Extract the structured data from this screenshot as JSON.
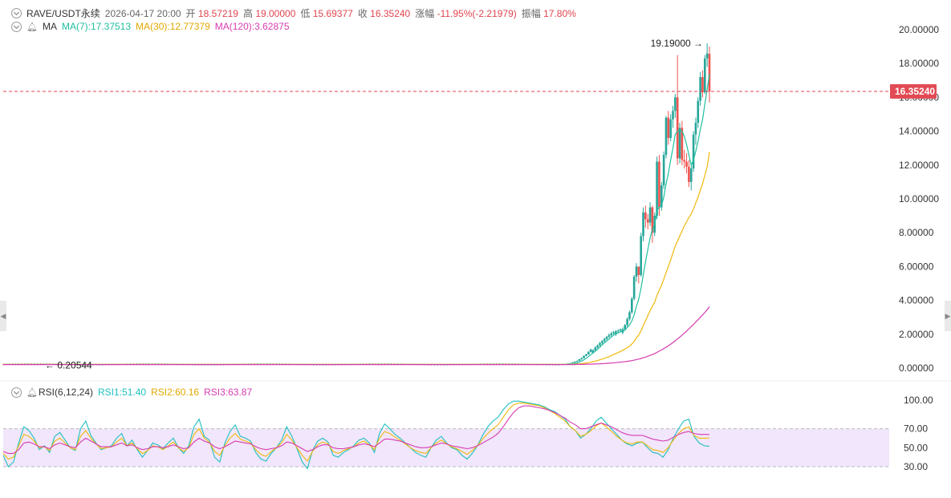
{
  "header": {
    "symbol": "RAVE/USDT永续",
    "datetime": "2026-04-17 20:00",
    "open_label": "开",
    "open": "18.57219",
    "high_label": "高",
    "high": "19.00000",
    "low_label": "低",
    "low": "15.69377",
    "close_label": "收",
    "close": "16.35240",
    "change_label": "涨幅",
    "change": "-11.95%(-2.21979)",
    "amp_label": "振幅",
    "amp": "17.80%"
  },
  "ma_legend": {
    "label": "MA",
    "ma7": "MA(7):17.37513",
    "ma30": "MA(30):12.77379",
    "ma120": "MA(120):3.62875"
  },
  "rsi_legend": {
    "label": "RSI(6,12,24)",
    "rsi1": "RSI1:51.40",
    "rsi2": "RSI2:60.16",
    "rsi3": "RSI3:63.87"
  },
  "colors": {
    "up": "#26a69a",
    "down": "#ef5350",
    "ma7": "#1fbf9f",
    "ma30": "#f0b90b",
    "ma120": "#d63cb0",
    "rsi1": "#1fbfbf",
    "rsi2": "#f0b90b",
    "rsi3": "#d63cb0"
  },
  "chart_data": [
    {
      "type": "candlestick",
      "title": "RAVE/USDT永续",
      "ylim": [
        0,
        20
      ],
      "y_ticks": [
        "20.00000",
        "18.00000",
        "16.00000",
        "14.00000",
        "12.00000",
        "10.00000",
        "8.00000",
        "6.00000",
        "4.00000",
        "2.00000",
        "0.00000"
      ],
      "y_tick_values": [
        20,
        18,
        16,
        14,
        12,
        10,
        8,
        6,
        4,
        2,
        0
      ],
      "last_price": 16.3524,
      "last_price_label": "16.35240",
      "max_annotation": {
        "value": 19.19,
        "label": "19.19000 →"
      },
      "min_annotation": {
        "value": 0.20544,
        "label": "← 0.20544"
      },
      "flat_segment": {
        "bars": 180,
        "level": 0.22
      },
      "candles": [
        [
          0.22,
          0.24,
          0.21,
          0.23
        ],
        [
          0.23,
          0.26,
          0.22,
          0.25
        ],
        [
          0.25,
          0.28,
          0.24,
          0.27
        ],
        [
          0.27,
          0.3,
          0.26,
          0.29
        ],
        [
          0.29,
          0.36,
          0.28,
          0.34
        ],
        [
          0.34,
          0.4,
          0.32,
          0.38
        ],
        [
          0.38,
          0.45,
          0.36,
          0.43
        ],
        [
          0.43,
          0.55,
          0.41,
          0.52
        ],
        [
          0.52,
          0.62,
          0.49,
          0.59
        ],
        [
          0.59,
          0.75,
          0.57,
          0.72
        ],
        [
          0.72,
          0.85,
          0.69,
          0.81
        ],
        [
          0.81,
          1.0,
          0.78,
          0.96
        ],
        [
          0.96,
          1.15,
          0.92,
          1.1
        ],
        [
          0.9,
          1.12,
          0.85,
          1.05
        ],
        [
          1.05,
          1.3,
          1.0,
          1.22
        ],
        [
          1.22,
          1.4,
          1.15,
          1.35
        ],
        [
          1.35,
          1.55,
          1.28,
          1.48
        ],
        [
          1.48,
          1.65,
          1.4,
          1.6
        ],
        [
          1.6,
          1.8,
          1.52,
          1.72
        ],
        [
          1.72,
          1.9,
          1.65,
          1.85
        ],
        [
          1.85,
          2.05,
          1.78,
          1.95
        ],
        [
          1.95,
          2.15,
          1.85,
          2.05
        ],
        [
          2.05,
          2.2,
          1.95,
          2.12
        ],
        [
          2.0,
          2.25,
          1.9,
          2.18
        ],
        [
          2.18,
          2.3,
          2.05,
          2.22
        ],
        [
          2.22,
          2.35,
          2.1,
          2.28
        ],
        [
          2.1,
          2.4,
          2.0,
          2.3
        ],
        [
          2.3,
          2.6,
          2.2,
          2.55
        ],
        [
          2.55,
          3.0,
          2.45,
          2.9
        ],
        [
          2.9,
          3.4,
          2.8,
          3.3
        ],
        [
          3.3,
          4.2,
          3.2,
          4.1
        ],
        [
          4.1,
          5.5,
          4.0,
          5.4
        ],
        [
          5.4,
          6.2,
          5.1,
          6.0
        ],
        [
          6.0,
          6.0,
          5.0,
          5.5
        ],
        [
          5.5,
          8.0,
          5.4,
          7.8
        ],
        [
          7.8,
          9.5,
          7.5,
          9.2
        ],
        [
          9.2,
          9.6,
          8.3,
          8.8
        ],
        [
          8.8,
          9.1,
          8.2,
          8.6
        ],
        [
          8.6,
          9.8,
          8.4,
          9.5
        ],
        [
          9.5,
          9.6,
          7.4,
          8.0
        ],
        [
          8.0,
          9.2,
          7.8,
          9.0
        ],
        [
          9.0,
          12.5,
          8.8,
          12.2
        ],
        [
          12.2,
          12.6,
          9.0,
          9.5
        ],
        [
          9.5,
          11.0,
          9.3,
          10.8
        ],
        [
          10.8,
          12.8,
          10.6,
          12.6
        ],
        [
          12.6,
          14.9,
          12.4,
          14.8
        ],
        [
          14.8,
          15.2,
          13.2,
          13.6
        ],
        [
          13.6,
          15.0,
          13.4,
          14.7
        ],
        [
          14.7,
          15.5,
          14.2,
          15.2
        ],
        [
          15.2,
          16.2,
          14.8,
          16.0
        ],
        [
          16.0,
          18.5,
          12.0,
          12.4
        ],
        [
          12.4,
          14.5,
          12.1,
          14.2
        ],
        [
          14.2,
          14.6,
          12.0,
          12.3
        ],
        [
          12.3,
          12.9,
          11.8,
          12.2
        ],
        [
          12.2,
          12.7,
          11.5,
          11.9
        ],
        [
          11.9,
          12.3,
          10.7,
          11.0
        ],
        [
          11.0,
          12.0,
          10.5,
          11.8
        ],
        [
          11.8,
          14.0,
          11.6,
          13.8
        ],
        [
          13.8,
          14.8,
          13.2,
          14.5
        ],
        [
          14.5,
          16.0,
          14.2,
          15.8
        ],
        [
          15.8,
          17.5,
          15.5,
          17.2
        ],
        [
          17.2,
          17.6,
          16.0,
          16.3
        ],
        [
          16.3,
          18.5,
          16.2,
          18.3
        ],
        [
          18.3,
          19.19,
          17.8,
          18.6
        ],
        [
          18.57219,
          19.0,
          15.69377,
          16.3524
        ]
      ],
      "ma_series": [
        {
          "name": "MA(7)",
          "values": [
            0.22,
            0.22,
            0.22,
            0.23,
            0.25,
            0.28,
            0.31,
            0.36,
            0.42,
            0.49,
            0.58,
            0.68,
            0.79,
            0.9,
            1.0,
            1.12,
            1.24,
            1.37,
            1.49,
            1.6,
            1.71,
            1.84,
            1.95,
            2.03,
            2.09,
            2.14,
            2.18,
            2.26,
            2.4,
            2.56,
            2.78,
            3.15,
            3.65,
            4.05,
            4.7,
            5.5,
            6.3,
            7.0,
            7.7,
            8.2,
            8.5,
            9.3,
            9.5,
            9.6,
            10.1,
            10.9,
            11.5,
            12.3,
            13.0,
            13.8,
            14.0,
            14.1,
            14.0,
            13.7,
            13.2,
            12.6,
            12.0,
            12.3,
            12.8,
            13.4,
            14.1,
            14.7,
            15.6,
            16.5,
            17.37513
          ]
        },
        {
          "name": "MA(30)",
          "values": [
            0.22,
            0.22,
            0.22,
            0.22,
            0.23,
            0.23,
            0.24,
            0.25,
            0.26,
            0.28,
            0.3,
            0.32,
            0.35,
            0.38,
            0.41,
            0.45,
            0.49,
            0.53,
            0.58,
            0.63,
            0.68,
            0.74,
            0.8,
            0.86,
            0.92,
            0.98,
            1.05,
            1.13,
            1.21,
            1.3,
            1.42,
            1.58,
            1.78,
            1.95,
            2.2,
            2.5,
            2.8,
            3.1,
            3.4,
            3.65,
            3.9,
            4.3,
            4.6,
            4.9,
            5.25,
            5.65,
            6.0,
            6.4,
            6.8,
            7.2,
            7.5,
            7.8,
            8.1,
            8.4,
            8.65,
            8.9,
            9.1,
            9.4,
            9.75,
            10.1,
            10.5,
            10.9,
            11.4,
            11.9,
            12.77379
          ]
        },
        {
          "name": "MA(120)",
          "values": [
            0.21,
            0.21,
            0.21,
            0.21,
            0.21,
            0.21,
            0.22,
            0.22,
            0.22,
            0.22,
            0.23,
            0.23,
            0.23,
            0.24,
            0.24,
            0.25,
            0.25,
            0.26,
            0.27,
            0.28,
            0.29,
            0.3,
            0.31,
            0.32,
            0.34,
            0.35,
            0.37,
            0.38,
            0.4,
            0.42,
            0.44,
            0.47,
            0.5,
            0.53,
            0.57,
            0.61,
            0.65,
            0.7,
            0.75,
            0.8,
            0.86,
            0.93,
            1.0,
            1.07,
            1.15,
            1.23,
            1.32,
            1.41,
            1.51,
            1.61,
            1.72,
            1.83,
            1.95,
            2.07,
            2.19,
            2.32,
            2.45,
            2.58,
            2.72,
            2.86,
            3.0,
            3.14,
            3.29,
            3.45,
            3.62875
          ]
        }
      ]
    },
    {
      "type": "line",
      "title": "RSI(6,12,24)",
      "ylim": [
        20,
        105
      ],
      "y_ticks": [
        "100.00",
        "70.00",
        "50.00",
        "30.00"
      ],
      "y_tick_values": [
        100,
        70,
        50,
        30
      ],
      "band": [
        30,
        70
      ],
      "series": [
        {
          "name": "RSI1",
          "values": [
            42,
            30,
            35,
            55,
            72,
            68,
            60,
            48,
            52,
            45,
            62,
            66,
            58,
            50,
            47,
            70,
            78,
            63,
            55,
            48,
            50,
            52,
            60,
            65,
            52,
            58,
            48,
            40,
            47,
            55,
            53,
            49,
            55,
            60,
            50,
            44,
            52,
            72,
            80,
            62,
            58,
            40,
            35,
            55,
            67,
            74,
            62,
            60,
            57,
            45,
            38,
            36,
            44,
            50,
            58,
            72,
            62,
            49,
            35,
            28,
            47,
            57,
            60,
            56,
            42,
            40,
            45,
            48,
            52,
            58,
            60,
            55,
            45,
            65,
            75,
            70,
            64,
            60,
            55,
            50,
            45,
            42,
            40,
            50,
            58,
            62,
            55,
            50,
            48,
            42,
            38,
            44,
            52,
            63,
            72,
            78,
            82,
            90,
            96,
            99,
            99,
            98,
            97,
            96,
            95,
            93,
            90,
            88,
            84,
            80,
            72,
            68,
            60,
            64,
            70,
            78,
            82,
            76,
            70,
            64,
            58,
            54,
            52,
            55,
            56,
            50,
            45,
            44,
            40,
            48,
            60,
            70,
            78,
            80,
            62,
            55,
            52,
            51.4
          ]
        },
        {
          "name": "RSI2",
          "values": [
            44,
            38,
            40,
            52,
            64,
            62,
            57,
            50,
            51,
            47,
            57,
            60,
            55,
            50,
            48,
            62,
            68,
            60,
            54,
            49,
            50,
            51,
            56,
            60,
            52,
            55,
            49,
            44,
            47,
            52,
            51,
            48,
            52,
            56,
            50,
            46,
            50,
            64,
            70,
            60,
            56,
            46,
            42,
            52,
            60,
            65,
            59,
            57,
            55,
            48,
            43,
            41,
            46,
            50,
            55,
            64,
            58,
            50,
            42,
            36,
            46,
            53,
            56,
            54,
            46,
            44,
            47,
            49,
            51,
            55,
            57,
            53,
            48,
            60,
            67,
            65,
            61,
            58,
            54,
            50,
            47,
            45,
            44,
            50,
            55,
            58,
            54,
            51,
            49,
            46,
            43,
            47,
            52,
            59,
            65,
            70,
            74,
            82,
            90,
            95,
            97,
            97,
            96,
            95,
            94,
            92,
            89,
            86,
            82,
            78,
            72,
            68,
            62,
            64,
            68,
            73,
            76,
            72,
            67,
            62,
            58,
            55,
            54,
            56,
            56,
            52,
            48,
            47,
            45,
            50,
            58,
            65,
            70,
            72,
            63,
            60,
            60,
            60.16
          ]
        },
        {
          "name": "RSI3",
          "values": [
            46,
            44,
            44,
            48,
            55,
            56,
            54,
            51,
            51,
            49,
            53,
            55,
            53,
            51,
            50,
            56,
            60,
            57,
            54,
            51,
            51,
            51,
            53,
            55,
            52,
            53,
            50,
            48,
            49,
            51,
            51,
            50,
            51,
            53,
            51,
            49,
            50,
            56,
            60,
            57,
            55,
            51,
            49,
            51,
            54,
            57,
            56,
            55,
            54,
            51,
            49,
            48,
            49,
            50,
            52,
            56,
            55,
            52,
            49,
            46,
            48,
            51,
            53,
            53,
            50,
            49,
            49,
            50,
            51,
            53,
            54,
            53,
            51,
            55,
            59,
            59,
            58,
            57,
            55,
            53,
            51,
            50,
            50,
            51,
            53,
            55,
            54,
            52,
            51,
            50,
            49,
            50,
            52,
            55,
            58,
            61,
            65,
            72,
            80,
            87,
            92,
            94,
            94,
            93,
            92,
            91,
            89,
            87,
            84,
            81,
            77,
            74,
            70,
            70,
            72,
            74,
            76,
            74,
            72,
            69,
            66,
            64,
            63,
            63,
            63,
            61,
            59,
            58,
            57,
            58,
            61,
            64,
            66,
            67,
            65,
            64,
            64,
            63.87
          ]
        }
      ]
    }
  ]
}
